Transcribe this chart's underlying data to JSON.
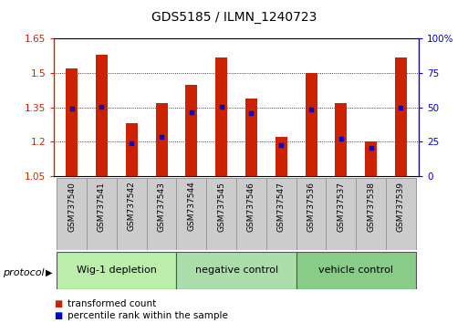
{
  "title": "GDS5185 / ILMN_1240723",
  "samples": [
    "GSM737540",
    "GSM737541",
    "GSM737542",
    "GSM737543",
    "GSM737544",
    "GSM737545",
    "GSM737546",
    "GSM737547",
    "GSM737536",
    "GSM737537",
    "GSM737538",
    "GSM737539"
  ],
  "bar_values": [
    1.52,
    1.58,
    1.28,
    1.37,
    1.45,
    1.57,
    1.39,
    1.22,
    1.5,
    1.37,
    1.2,
    1.57
  ],
  "blue_values": [
    1.345,
    1.353,
    1.195,
    1.22,
    1.33,
    1.352,
    1.325,
    1.185,
    1.34,
    1.215,
    1.175,
    1.35
  ],
  "bar_color": "#cc2200",
  "blue_color": "#0000cc",
  "ymin": 1.05,
  "ymax": 1.65,
  "y_ticks_left": [
    1.05,
    1.2,
    1.35,
    1.5,
    1.65
  ],
  "y_ticks_right": [
    0,
    25,
    50,
    75,
    100
  ],
  "groups": [
    {
      "label": "Wig-1 depletion",
      "start": 0,
      "end": 4,
      "color": "#bbeeaa"
    },
    {
      "label": "negative control",
      "start": 4,
      "end": 8,
      "color": "#aaddaa"
    },
    {
      "label": "vehicle control",
      "start": 8,
      "end": 12,
      "color": "#88cc88"
    }
  ],
  "protocol_label": "protocol",
  "legend_red": "transformed count",
  "legend_blue": "percentile rank within the sample",
  "bar_width": 0.4,
  "background_color": "#ffffff",
  "plot_bg": "#ffffff",
  "title_fontsize": 10,
  "tick_fontsize": 7.5,
  "sample_fontsize": 6.5,
  "group_fontsize": 8,
  "legend_fontsize": 7.5
}
